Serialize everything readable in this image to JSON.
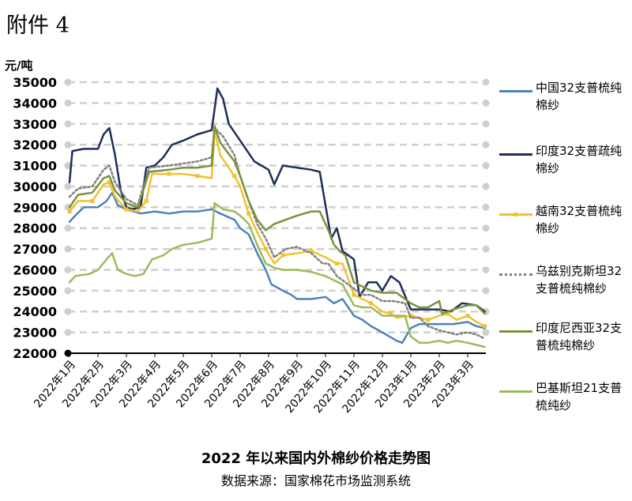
{
  "header": {
    "attachment": "附件 4"
  },
  "chart_data": {
    "type": "line",
    "title": "2022 年以来国内外棉纱价格走势图",
    "subtitle": "数据来源：国家棉花市场监测系统",
    "ylabel": "元/吨",
    "ylim": [
      22000,
      35000
    ],
    "yticks": [
      "22000",
      "23000",
      "24000",
      "25000",
      "26000",
      "27000",
      "28000",
      "29000",
      "30000",
      "31000",
      "32000",
      "33000",
      "34000",
      "35000"
    ],
    "categories": [
      "2022年1月",
      "2022年2月",
      "2022年3月",
      "2022年4月",
      "2022年5月",
      "2022年6月",
      "2022年7月",
      "2022年8月",
      "2022年9月",
      "2022年10月",
      "2022年11月",
      "2022年12月",
      "2023年1月",
      "2023年2月",
      "2023年3月"
    ],
    "grid": true,
    "legend": "right",
    "series": [
      {
        "name": "中国32支普梳纯棉纱",
        "color": "#4f81bd",
        "dash": "solid",
        "points": [
          [
            0,
            28300
          ],
          [
            0.2,
            28600
          ],
          [
            0.5,
            29000
          ],
          [
            1,
            29000
          ],
          [
            1.3,
            29300
          ],
          [
            1.5,
            29700
          ],
          [
            1.7,
            29100
          ],
          [
            2,
            28900
          ],
          [
            2.5,
            28700
          ],
          [
            3,
            28800
          ],
          [
            3.5,
            28700
          ],
          [
            4,
            28800
          ],
          [
            4.5,
            28800
          ],
          [
            5,
            28900
          ],
          [
            5.3,
            28700
          ],
          [
            5.8,
            28400
          ],
          [
            6,
            28000
          ],
          [
            6.3,
            27700
          ],
          [
            6.6,
            26800
          ],
          [
            6.9,
            26000
          ],
          [
            7.1,
            25300
          ],
          [
            7.5,
            25000
          ],
          [
            7.8,
            24800
          ],
          [
            8,
            24600
          ],
          [
            8.5,
            24600
          ],
          [
            9,
            24700
          ],
          [
            9.3,
            24400
          ],
          [
            9.6,
            24600
          ],
          [
            10,
            23800
          ],
          [
            10.3,
            23600
          ],
          [
            10.6,
            23300
          ],
          [
            11,
            23000
          ],
          [
            11.5,
            22600
          ],
          [
            11.7,
            22500
          ],
          [
            12,
            23200
          ],
          [
            12.3,
            23400
          ],
          [
            12.6,
            23400
          ],
          [
            13,
            23400
          ],
          [
            13.5,
            23400
          ],
          [
            14,
            23500
          ],
          [
            14.3,
            23300
          ],
          [
            14.6,
            23200
          ]
        ]
      },
      {
        "name": "印度32支普疏纯棉纱",
        "color": "#1f2d5a",
        "dash": "solid",
        "points": [
          [
            0,
            30200
          ],
          [
            0.1,
            31700
          ],
          [
            0.5,
            31800
          ],
          [
            1,
            31800
          ],
          [
            1.2,
            32500
          ],
          [
            1.4,
            32800
          ],
          [
            1.6,
            31500
          ],
          [
            1.8,
            29800
          ],
          [
            2,
            29000
          ],
          [
            2.2,
            28900
          ],
          [
            2.5,
            29000
          ],
          [
            2.7,
            30900
          ],
          [
            3,
            31000
          ],
          [
            3.3,
            31400
          ],
          [
            3.6,
            32000
          ],
          [
            4,
            32200
          ],
          [
            4.5,
            32500
          ],
          [
            5,
            32700
          ],
          [
            5.2,
            34700
          ],
          [
            5.4,
            34200
          ],
          [
            5.6,
            33000
          ],
          [
            6,
            32200
          ],
          [
            6.5,
            31200
          ],
          [
            7,
            30800
          ],
          [
            7.2,
            30100
          ],
          [
            7.5,
            31000
          ],
          [
            8,
            30900
          ],
          [
            8.5,
            30800
          ],
          [
            8.8,
            30700
          ],
          [
            9.2,
            27500
          ],
          [
            9.4,
            28000
          ],
          [
            9.6,
            26900
          ],
          [
            10,
            26500
          ],
          [
            10.2,
            24700
          ],
          [
            10.5,
            25400
          ],
          [
            10.8,
            25400
          ],
          [
            11,
            25000
          ],
          [
            11.3,
            25700
          ],
          [
            11.6,
            25400
          ],
          [
            12,
            24100
          ],
          [
            12.5,
            24100
          ],
          [
            13,
            24100
          ],
          [
            13.4,
            24000
          ],
          [
            13.8,
            24400
          ],
          [
            14.3,
            24300
          ],
          [
            14.6,
            24000
          ]
        ]
      },
      {
        "name": "越南32支普梳纯棉纱",
        "color": "#f2c12e",
        "dash": "solid",
        "points": [
          [
            0,
            28800
          ],
          [
            0.3,
            29300
          ],
          [
            0.8,
            29300
          ],
          [
            1.2,
            30100
          ],
          [
            1.4,
            30200
          ],
          [
            1.6,
            29500
          ],
          [
            2,
            28900
          ],
          [
            2.4,
            28800
          ],
          [
            2.7,
            29300
          ],
          [
            2.9,
            30600
          ],
          [
            3.5,
            30600
          ],
          [
            4,
            30600
          ],
          [
            4.5,
            30500
          ],
          [
            5,
            30400
          ],
          [
            5.1,
            32700
          ],
          [
            5.3,
            31500
          ],
          [
            5.8,
            30500
          ],
          [
            6,
            30000
          ],
          [
            6.3,
            28700
          ],
          [
            6.6,
            27800
          ],
          [
            6.9,
            27000
          ],
          [
            7.2,
            26300
          ],
          [
            7.5,
            26700
          ],
          [
            8,
            26800
          ],
          [
            8.5,
            26900
          ],
          [
            9,
            26600
          ],
          [
            9.4,
            26300
          ],
          [
            9.6,
            26300
          ],
          [
            10,
            24800
          ],
          [
            10.3,
            24600
          ],
          [
            10.6,
            24400
          ],
          [
            11,
            24000
          ],
          [
            11.3,
            23900
          ],
          [
            11.5,
            23700
          ],
          [
            12,
            23800
          ],
          [
            12.3,
            23700
          ],
          [
            12.6,
            23600
          ],
          [
            13,
            23800
          ],
          [
            13.3,
            23900
          ],
          [
            13.6,
            23600
          ],
          [
            14,
            23800
          ],
          [
            14.3,
            23500
          ],
          [
            14.6,
            23300
          ]
        ]
      },
      {
        "name": "乌兹别克斯坦32支普梳纯棉纱",
        "color": "#7f7f7f",
        "dash": "dotted",
        "points": [
          [
            0,
            29500
          ],
          [
            0.3,
            29900
          ],
          [
            0.8,
            30000
          ],
          [
            1.2,
            30800
          ],
          [
            1.4,
            31000
          ],
          [
            1.6,
            30200
          ],
          [
            2,
            29400
          ],
          [
            2.4,
            29100
          ],
          [
            2.8,
            30900
          ],
          [
            3.5,
            31000
          ],
          [
            4,
            31100
          ],
          [
            4.5,
            31200
          ],
          [
            5,
            31400
          ],
          [
            5.1,
            32800
          ],
          [
            5.4,
            32400
          ],
          [
            5.8,
            31500
          ],
          [
            6,
            30500
          ],
          [
            6.3,
            29300
          ],
          [
            6.6,
            28200
          ],
          [
            6.9,
            27500
          ],
          [
            7.2,
            26600
          ],
          [
            7.6,
            27000
          ],
          [
            8,
            27100
          ],
          [
            8.5,
            26800
          ],
          [
            8.9,
            26300
          ],
          [
            9.1,
            26300
          ],
          [
            9.4,
            25700
          ],
          [
            10,
            25100
          ],
          [
            10.3,
            24800
          ],
          [
            10.6,
            24800
          ],
          [
            11,
            24500
          ],
          [
            11.4,
            24500
          ],
          [
            11.8,
            24400
          ],
          [
            12,
            23700
          ],
          [
            12.3,
            23700
          ],
          [
            12.6,
            23300
          ],
          [
            13,
            23100
          ],
          [
            13.3,
            23000
          ],
          [
            13.6,
            22900
          ],
          [
            14,
            23000
          ],
          [
            14.3,
            22900
          ],
          [
            14.6,
            22700
          ]
        ]
      },
      {
        "name": "印度尼西亚32支普梳纯棉纱",
        "color": "#77933c",
        "dash": "solid",
        "points": [
          [
            0,
            29000
          ],
          [
            0.3,
            29600
          ],
          [
            0.8,
            29700
          ],
          [
            1.2,
            30400
          ],
          [
            1.4,
            30500
          ],
          [
            1.6,
            29800
          ],
          [
            2,
            29200
          ],
          [
            2.4,
            29000
          ],
          [
            2.8,
            30700
          ],
          [
            3.5,
            30800
          ],
          [
            4,
            30900
          ],
          [
            4.5,
            30900
          ],
          [
            5,
            31000
          ],
          [
            5.1,
            32900
          ],
          [
            5.3,
            32100
          ],
          [
            5.8,
            31200
          ],
          [
            6,
            30500
          ],
          [
            6.3,
            29300
          ],
          [
            6.6,
            28400
          ],
          [
            6.9,
            27900
          ],
          [
            7.2,
            28200
          ],
          [
            7.6,
            28400
          ],
          [
            8,
            28600
          ],
          [
            8.5,
            28800
          ],
          [
            8.8,
            28800
          ],
          [
            9.1,
            27900
          ],
          [
            9.3,
            27200
          ],
          [
            9.5,
            26900
          ],
          [
            9.7,
            26700
          ],
          [
            10,
            25400
          ],
          [
            10.3,
            25200
          ],
          [
            10.6,
            25000
          ],
          [
            11,
            24900
          ],
          [
            11.5,
            24900
          ],
          [
            12,
            24400
          ],
          [
            12.3,
            24200
          ],
          [
            12.6,
            24200
          ],
          [
            13,
            24500
          ],
          [
            13.1,
            23900
          ],
          [
            13.5,
            24100
          ],
          [
            14,
            24300
          ],
          [
            14.3,
            24300
          ],
          [
            14.6,
            23900
          ]
        ]
      },
      {
        "name": "巴基斯坦21支普梳纯纱",
        "color": "#9bbb59",
        "dash": "solid",
        "points": [
          [
            0,
            25400
          ],
          [
            0.2,
            25700
          ],
          [
            0.7,
            25800
          ],
          [
            1,
            26000
          ],
          [
            1.3,
            26500
          ],
          [
            1.5,
            26800
          ],
          [
            1.7,
            26000
          ],
          [
            2,
            25800
          ],
          [
            2.3,
            25700
          ],
          [
            2.6,
            25800
          ],
          [
            2.9,
            26500
          ],
          [
            3.3,
            26700
          ],
          [
            3.6,
            27000
          ],
          [
            4,
            27200
          ],
          [
            4.5,
            27300
          ],
          [
            5,
            27500
          ],
          [
            5.1,
            29200
          ],
          [
            5.4,
            28900
          ],
          [
            5.8,
            28800
          ],
          [
            6,
            28600
          ],
          [
            6.3,
            28200
          ],
          [
            6.6,
            27200
          ],
          [
            6.9,
            26300
          ],
          [
            7.2,
            26100
          ],
          [
            7.5,
            26000
          ],
          [
            8,
            26000
          ],
          [
            8.5,
            25900
          ],
          [
            9,
            25700
          ],
          [
            9.3,
            25500
          ],
          [
            9.6,
            25300
          ],
          [
            10,
            24300
          ],
          [
            10.3,
            24200
          ],
          [
            10.6,
            24200
          ],
          [
            11,
            23800
          ],
          [
            11.4,
            23800
          ],
          [
            11.8,
            23800
          ],
          [
            12,
            22800
          ],
          [
            12.3,
            22500
          ],
          [
            12.6,
            22500
          ],
          [
            13,
            22600
          ],
          [
            13.3,
            22500
          ],
          [
            13.6,
            22600
          ],
          [
            14,
            22500
          ],
          [
            14.3,
            22400
          ],
          [
            14.6,
            22300
          ]
        ]
      }
    ]
  }
}
